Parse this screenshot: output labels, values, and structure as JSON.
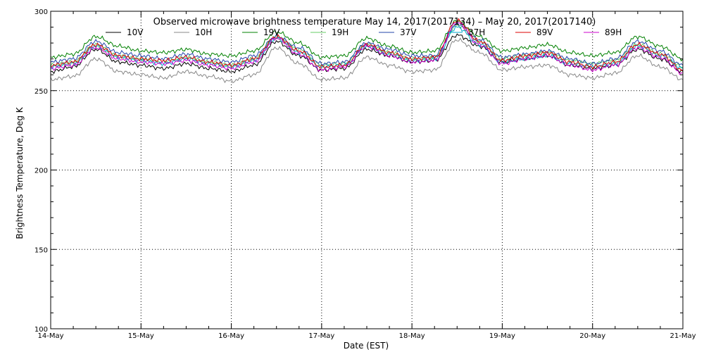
{
  "chart_data": {
    "type": "line",
    "title": "Observed microwave brightness temperature May 14, 2017(2017134) – May 20, 2017(2017140)",
    "xlabel": "Date (EST)",
    "ylabel": "Brightness Temperature, Deg K",
    "xlim": [
      0,
      7
    ],
    "ylim": [
      100,
      300
    ],
    "x_ticks": [
      0,
      1,
      2,
      3,
      4,
      5,
      6,
      7
    ],
    "x_tick_labels": [
      "14-May",
      "15-May",
      "16-May",
      "17-May",
      "18-May",
      "19-May",
      "20-May",
      "21-May"
    ],
    "y_ticks": [
      100,
      150,
      200,
      250,
      300
    ],
    "grid": true,
    "legend": "top",
    "x": [
      0,
      0.25,
      0.5,
      0.75,
      1,
      1.25,
      1.5,
      1.75,
      2,
      2.25,
      2.5,
      2.75,
      3,
      3.25,
      3.5,
      3.75,
      4,
      4.25,
      4.5,
      4.75,
      5,
      5.25,
      5.5,
      5.75,
      6,
      6.25,
      6.5,
      6.75,
      7
    ],
    "series": [
      {
        "name": "10V",
        "color": "#000000",
        "values": [
          262,
          265,
          276,
          268,
          266,
          264,
          267,
          264,
          262,
          266,
          281,
          272,
          263,
          264,
          276,
          272,
          268,
          269,
          285,
          278,
          268,
          270,
          272,
          266,
          264,
          266,
          276,
          270,
          262
        ]
      },
      {
        "name": "10H",
        "color": "#888888",
        "values": [
          257,
          259,
          270,
          262,
          260,
          258,
          262,
          259,
          256,
          260,
          277,
          267,
          257,
          258,
          271,
          266,
          262,
          263,
          282,
          274,
          263,
          265,
          266,
          260,
          258,
          261,
          272,
          265,
          257
        ]
      },
      {
        "name": "19V",
        "color": "#008000",
        "values": [
          271,
          273,
          284,
          278,
          275,
          274,
          276,
          273,
          272,
          275,
          287,
          280,
          271,
          272,
          283,
          278,
          274,
          275,
          294,
          284,
          275,
          277,
          279,
          274,
          272,
          274,
          284,
          278,
          270
        ]
      },
      {
        "name": "19H",
        "color": "#66cc66",
        "values": [
          266,
          268,
          279,
          272,
          270,
          268,
          271,
          268,
          266,
          270,
          284,
          276,
          266,
          267,
          279,
          274,
          270,
          271,
          291,
          281,
          270,
          272,
          274,
          269,
          267,
          269,
          279,
          273,
          265
        ]
      },
      {
        "name": "37V",
        "color": "#2244aa",
        "values": [
          268,
          270,
          281,
          274,
          272,
          270,
          273,
          270,
          268,
          272,
          284,
          277,
          267,
          268,
          280,
          276,
          272,
          272,
          292,
          282,
          271,
          273,
          275,
          270,
          267,
          270,
          281,
          275,
          266
        ]
      },
      {
        "name": "37H",
        "color": "#00aacc",
        "values": [
          265,
          267,
          278,
          271,
          269,
          267,
          270,
          267,
          265,
          269,
          283,
          274,
          265,
          266,
          278,
          273,
          269,
          270,
          290,
          279,
          268,
          270,
          272,
          267,
          265,
          267,
          278,
          272,
          264
        ]
      },
      {
        "name": "89V",
        "color": "#dd0000",
        "values": [
          266,
          268,
          279,
          272,
          270,
          269,
          271,
          268,
          266,
          270,
          284,
          275,
          265,
          266,
          279,
          274,
          270,
          271,
          294,
          281,
          269,
          272,
          274,
          268,
          265,
          268,
          279,
          273,
          263
        ]
      },
      {
        "name": "89H",
        "color": "#cc00cc",
        "values": [
          264,
          266,
          277,
          270,
          268,
          267,
          269,
          266,
          264,
          268,
          283,
          273,
          263,
          265,
          278,
          272,
          268,
          269,
          293,
          279,
          267,
          270,
          272,
          266,
          263,
          266,
          277,
          271,
          261
        ]
      }
    ]
  }
}
